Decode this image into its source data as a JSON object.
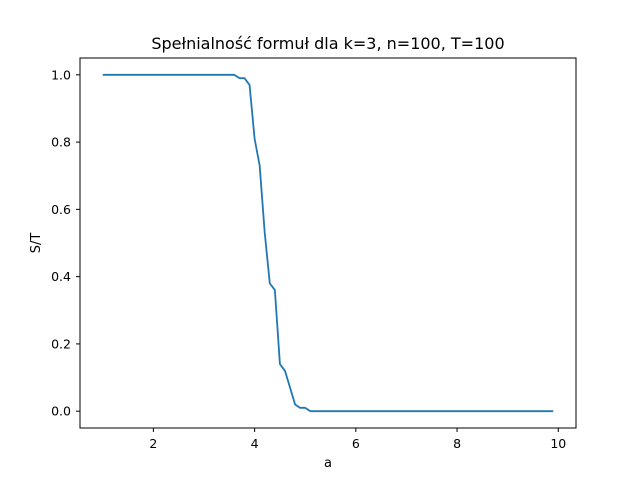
{
  "chart_data": {
    "type": "line",
    "title": "Spełnialność formuł dla k=3, n=100, T=100",
    "xlabel": "a",
    "ylabel": "S/T",
    "xlim": [
      0.55,
      10.35
    ],
    "ylim": [
      -0.05,
      1.05
    ],
    "xticks": [
      2,
      4,
      6,
      8,
      10
    ],
    "yticks": [
      0.0,
      0.2,
      0.4,
      0.6,
      0.8,
      1.0
    ],
    "xtick_labels": [
      "2",
      "4",
      "6",
      "8",
      "10"
    ],
    "ytick_labels": [
      "0.0",
      "0.2",
      "0.4",
      "0.6",
      "0.8",
      "1.0"
    ],
    "grid": false,
    "legend": "none",
    "series": [
      {
        "color": "#1f77b4",
        "x": [
          1.0,
          3.6,
          3.7,
          3.8,
          3.9,
          4.0,
          4.1,
          4.2,
          4.3,
          4.4,
          4.5,
          4.6,
          4.7,
          4.8,
          4.9,
          5.0,
          5.1,
          9.9
        ],
        "y": [
          1.0,
          1.0,
          0.99,
          0.99,
          0.97,
          0.81,
          0.73,
          0.53,
          0.38,
          0.36,
          0.14,
          0.12,
          0.07,
          0.02,
          0.01,
          0.01,
          0.0,
          0.0
        ]
      }
    ]
  }
}
